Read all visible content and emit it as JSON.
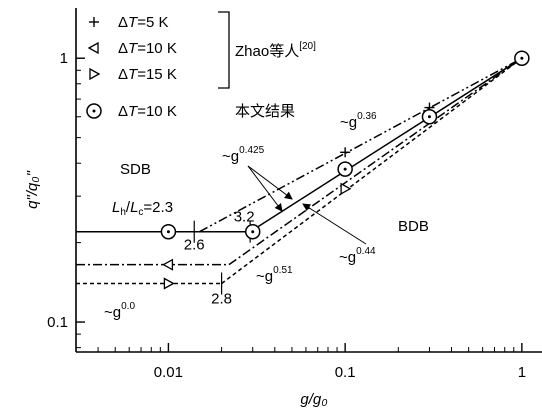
{
  "chart_data": {
    "type": "line",
    "xlabel": "g/g₀",
    "ylabel": "q\"/q₀\"",
    "xscale": "log",
    "yscale": "log",
    "xlim": [
      0.003,
      1.3
    ],
    "ylim": [
      0.077,
      1.55
    ],
    "x_ticks": [
      {
        "v": 0.01,
        "label": "0.01"
      },
      {
        "v": 0.1,
        "label": "0.1"
      },
      {
        "v": 1,
        "label": "1"
      }
    ],
    "y_ticks": [
      {
        "v": 0.1,
        "label": "0.1"
      },
      {
        "v": 1,
        "label": "1"
      }
    ],
    "legend": {
      "placement": "top-left",
      "entries": [
        {
          "marker": "plus",
          "prefix": "Δ",
          "var": "T",
          "suffix": "=5 K"
        },
        {
          "marker": "tri-left",
          "prefix": "Δ",
          "var": "T",
          "suffix": "=10 K"
        },
        {
          "marker": "tri-right",
          "prefix": "Δ",
          "var": "T",
          "suffix": "=15 K"
        },
        {
          "marker": "circle-dot",
          "prefix": "Δ",
          "var": "T",
          "suffix": "=10 K"
        }
      ],
      "group_label": "Zhao等人",
      "group_ref": "[20]",
      "own_label": "本文结果"
    },
    "series": [
      {
        "marker": "plus",
        "style": "dash-dot-dot",
        "points": [
          [
            0.1,
            0.44
          ],
          [
            0.3,
            0.65
          ],
          [
            1,
            1.0
          ]
        ],
        "fit": [
          [
            0.015,
            0.22
          ],
          [
            1,
            1.0
          ]
        ],
        "plateau": {
          "y": 0.22,
          "x_start": 0.003,
          "x_end": 0.015
        }
      },
      {
        "marker": "tri-left",
        "style": "dash-dot",
        "points": [
          [
            0.01,
            0.165
          ]
        ],
        "fit": [
          [
            0.022,
            0.165
          ],
          [
            1,
            1.0
          ]
        ],
        "plateau": {
          "y": 0.165,
          "x_start": 0.003,
          "x_end": 0.022
        }
      },
      {
        "marker": "tri-right",
        "style": "dashed",
        "points": [
          [
            0.01,
            0.14
          ],
          [
            0.1,
            0.32
          ]
        ],
        "fit": [
          [
            0.02,
            0.14
          ],
          [
            1,
            1.0
          ]
        ],
        "plateau": {
          "y": 0.14,
          "x_start": 0.003,
          "x_end": 0.02
        }
      },
      {
        "marker": "circle-dot",
        "style": "solid",
        "points": [
          [
            0.01,
            0.22
          ],
          [
            0.03,
            0.22
          ],
          [
            0.1,
            0.38
          ],
          [
            0.3,
            0.6
          ],
          [
            1,
            1.0
          ]
        ],
        "fit": [
          [
            0.029,
            0.22
          ],
          [
            1,
            1.0
          ]
        ],
        "plateau": {
          "y": 0.22,
          "x_start": 0.003,
          "x_end": 0.029
        }
      }
    ],
    "transition_marks": [
      {
        "x": 0.014,
        "y": 0.22,
        "label": "2.6"
      },
      {
        "x": 0.029,
        "y": 0.22,
        "label": "3.2"
      },
      {
        "x": 0.02,
        "y": 0.14,
        "label": "2.8"
      }
    ],
    "annotations": {
      "sdb": "SDB",
      "bdb": "BDB",
      "ratio": {
        "l": "L",
        "h": "h",
        "slash": "/",
        "c": "c",
        "value": "=2.3"
      },
      "slopes": [
        {
          "base": "~g",
          "exp": "0.36"
        },
        {
          "base": "~g",
          "exp": "0.425"
        },
        {
          "base": "~g",
          "exp": "0.44"
        },
        {
          "base": "~g",
          "exp": "0.51"
        },
        {
          "base": "~g",
          "exp": "0.0"
        }
      ]
    }
  }
}
